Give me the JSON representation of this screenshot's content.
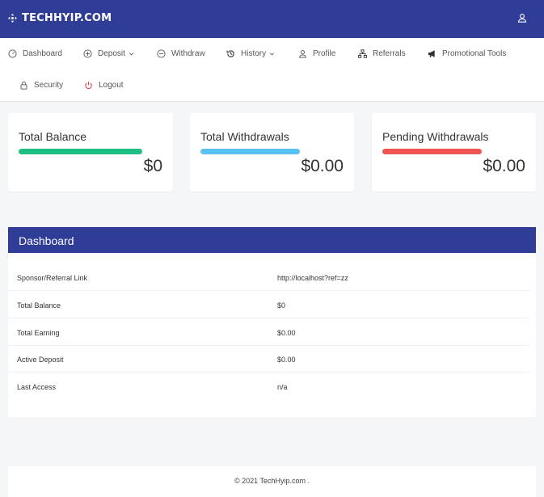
{
  "header": {
    "brand": "TECHHYIP.COM"
  },
  "nav": {
    "dashboard": "Dashboard",
    "deposit": "Deposit",
    "withdraw": "Withdraw",
    "history": "History",
    "profile": "Profile",
    "referrals": "Referrals",
    "promotional_tools": "Promotional Tools",
    "security": "Security",
    "logout": "Logout"
  },
  "stats": [
    {
      "title": "Total Balance",
      "value": "$0",
      "color": "#1fbf83"
    },
    {
      "title": "Total Withdrawals",
      "value": "$0.00",
      "color": "#5bc0f2"
    },
    {
      "title": "Pending Withdrawals",
      "value": "$0.00",
      "color": "#f05555"
    }
  ],
  "dashboard": {
    "title": "Dashboard",
    "rows": [
      {
        "label": "Sponsor/Referral Link",
        "value": "http://localhost?ref=zz"
      },
      {
        "label": "Total Balance",
        "value": "$0"
      },
      {
        "label": "Total Earning",
        "value": "$0.00"
      },
      {
        "label": "Active Deposit",
        "value": "$0.00"
      },
      {
        "label": "Last Access",
        "value": "n/a"
      }
    ]
  },
  "footer": {
    "text": "© 2021 TechHyip.com ."
  },
  "colors": {
    "primary": "#2f3d96",
    "logout_icon": "#e04848"
  }
}
